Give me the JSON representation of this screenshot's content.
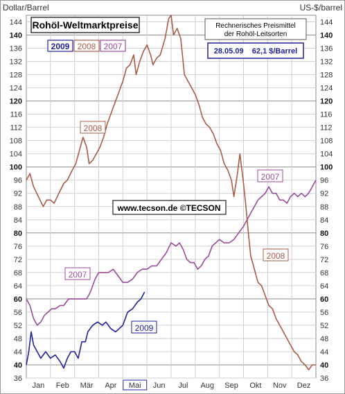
{
  "chart_data": {
    "type": "line",
    "title": "Rohöl-Weltmarktpreise",
    "ylabel_left": "Dollar/Barrel",
    "ylabel_right": "US-$/barrel",
    "ylim": [
      36,
      146
    ],
    "yticks": [
      36,
      40,
      44,
      48,
      52,
      56,
      60,
      64,
      68,
      72,
      76,
      80,
      84,
      88,
      92,
      96,
      100,
      104,
      108,
      112,
      116,
      120,
      124,
      128,
      132,
      136,
      140,
      144
    ],
    "ymajor": [
      40,
      60,
      80,
      100,
      120,
      140
    ],
    "months": [
      "Jan",
      "Feb",
      "Mär",
      "Apr",
      "Mai",
      "Jun",
      "Jul",
      "Aug",
      "Sep",
      "Okt",
      "Nov",
      "Dez"
    ],
    "highlight_month": "Mai",
    "legend": [
      "2009",
      "2008",
      "2007"
    ],
    "note": [
      "Rechnerisches Preismittel",
      "der Rohöl-Leitsorten"
    ],
    "quote": "28.05.09    62,1 $/Barrel",
    "watermark": "www.tecson.de  ©TECSON",
    "x_unit": "month index (1.0 = start of Jan, 13.0 = end of Dec)",
    "series": [
      {
        "name": "2009",
        "color": "#1f1fa0",
        "label_in_plot": "2009",
        "points": [
          [
            1.0,
            40
          ],
          [
            1.1,
            44
          ],
          [
            1.2,
            50
          ],
          [
            1.3,
            46
          ],
          [
            1.45,
            44
          ],
          [
            1.6,
            42
          ],
          [
            1.8,
            44
          ],
          [
            2.0,
            42
          ],
          [
            2.2,
            43
          ],
          [
            2.4,
            41
          ],
          [
            2.55,
            39
          ],
          [
            2.7,
            42
          ],
          [
            2.85,
            44
          ],
          [
            3.0,
            44
          ],
          [
            3.15,
            42
          ],
          [
            3.3,
            47
          ],
          [
            3.45,
            47
          ],
          [
            3.55,
            50
          ],
          [
            3.75,
            52
          ],
          [
            3.95,
            53
          ],
          [
            4.15,
            52
          ],
          [
            4.3,
            53
          ],
          [
            4.5,
            51
          ],
          [
            4.7,
            50
          ],
          [
            4.85,
            51
          ],
          [
            5.0,
            52
          ],
          [
            5.2,
            56
          ],
          [
            5.4,
            57
          ],
          [
            5.6,
            59
          ],
          [
            5.75,
            60
          ],
          [
            5.9,
            62.1
          ]
        ]
      },
      {
        "name": "2008",
        "color": "#a85a46",
        "label_in_plot": "2008",
        "points": [
          [
            1.0,
            96
          ],
          [
            1.15,
            98
          ],
          [
            1.3,
            94
          ],
          [
            1.5,
            91
          ],
          [
            1.7,
            88
          ],
          [
            1.85,
            90
          ],
          [
            2.0,
            90
          ],
          [
            2.15,
            89
          ],
          [
            2.35,
            92
          ],
          [
            2.55,
            95
          ],
          [
            2.7,
            96
          ],
          [
            2.9,
            99
          ],
          [
            3.05,
            101
          ],
          [
            3.2,
            105
          ],
          [
            3.35,
            109
          ],
          [
            3.5,
            106
          ],
          [
            3.6,
            101
          ],
          [
            3.75,
            102
          ],
          [
            3.9,
            104
          ],
          [
            4.05,
            106
          ],
          [
            4.2,
            109
          ],
          [
            4.35,
            113
          ],
          [
            4.5,
            116
          ],
          [
            4.65,
            119
          ],
          [
            4.8,
            122
          ],
          [
            4.9,
            124
          ],
          [
            5.0,
            126
          ],
          [
            5.15,
            130
          ],
          [
            5.3,
            131
          ],
          [
            5.45,
            134
          ],
          [
            5.55,
            128
          ],
          [
            5.7,
            132
          ],
          [
            5.85,
            135
          ],
          [
            6.0,
            137
          ],
          [
            6.15,
            134
          ],
          [
            6.25,
            131
          ],
          [
            6.4,
            133
          ],
          [
            6.55,
            134
          ],
          [
            6.75,
            139
          ],
          [
            6.9,
            145
          ],
          [
            7.0,
            146
          ],
          [
            7.1,
            140
          ],
          [
            7.25,
            142
          ],
          [
            7.4,
            139
          ],
          [
            7.55,
            128
          ],
          [
            7.7,
            126
          ],
          [
            7.85,
            124
          ],
          [
            8.0,
            122
          ],
          [
            8.15,
            119
          ],
          [
            8.3,
            115
          ],
          [
            8.45,
            113
          ],
          [
            8.6,
            112
          ],
          [
            8.75,
            110
          ],
          [
            8.9,
            107
          ],
          [
            9.05,
            105
          ],
          [
            9.2,
            101
          ],
          [
            9.35,
            99
          ],
          [
            9.5,
            96
          ],
          [
            9.6,
            91
          ],
          [
            9.75,
            98
          ],
          [
            9.85,
            104
          ],
          [
            10.0,
            95
          ],
          [
            10.1,
            88
          ],
          [
            10.2,
            80
          ],
          [
            10.3,
            73
          ],
          [
            10.45,
            69
          ],
          [
            10.6,
            65
          ],
          [
            10.75,
            64
          ],
          [
            10.9,
            61
          ],
          [
            11.05,
            58
          ],
          [
            11.2,
            57
          ],
          [
            11.35,
            54
          ],
          [
            11.5,
            52
          ],
          [
            11.65,
            50
          ],
          [
            11.8,
            48
          ],
          [
            11.95,
            46
          ],
          [
            12.1,
            44
          ],
          [
            12.25,
            43
          ],
          [
            12.4,
            41
          ],
          [
            12.55,
            40
          ],
          [
            12.7,
            38.5
          ],
          [
            12.85,
            40
          ],
          [
            13.0,
            40
          ]
        ]
      },
      {
        "name": "2007",
        "color": "#9a4a9a",
        "label_in_plot": "2007",
        "points": [
          [
            1.0,
            60
          ],
          [
            1.15,
            58
          ],
          [
            1.3,
            54
          ],
          [
            1.45,
            52
          ],
          [
            1.6,
            53
          ],
          [
            1.75,
            55
          ],
          [
            1.9,
            56
          ],
          [
            2.05,
            57
          ],
          [
            2.2,
            57
          ],
          [
            2.4,
            58
          ],
          [
            2.55,
            58
          ],
          [
            2.75,
            60
          ],
          [
            2.9,
            60
          ],
          [
            3.1,
            60
          ],
          [
            3.3,
            60
          ],
          [
            3.5,
            60
          ],
          [
            3.65,
            62
          ],
          [
            3.85,
            66
          ],
          [
            4.0,
            68
          ],
          [
            4.2,
            68
          ],
          [
            4.4,
            68
          ],
          [
            4.6,
            69
          ],
          [
            4.8,
            67
          ],
          [
            5.0,
            65
          ],
          [
            5.2,
            65
          ],
          [
            5.4,
            66
          ],
          [
            5.6,
            68
          ],
          [
            5.8,
            69
          ],
          [
            6.0,
            69
          ],
          [
            6.2,
            70
          ],
          [
            6.4,
            70
          ],
          [
            6.6,
            72
          ],
          [
            6.8,
            74
          ],
          [
            7.0,
            77
          ],
          [
            7.2,
            76
          ],
          [
            7.35,
            77
          ],
          [
            7.5,
            75
          ],
          [
            7.65,
            72
          ],
          [
            7.8,
            71
          ],
          [
            7.95,
            71
          ],
          [
            8.1,
            69
          ],
          [
            8.25,
            70
          ],
          [
            8.4,
            72
          ],
          [
            8.55,
            73
          ],
          [
            8.7,
            76
          ],
          [
            8.85,
            77
          ],
          [
            9.0,
            78
          ],
          [
            9.2,
            77
          ],
          [
            9.4,
            77
          ],
          [
            9.6,
            78
          ],
          [
            9.8,
            80
          ],
          [
            10.0,
            82
          ],
          [
            10.15,
            84
          ],
          [
            10.3,
            86
          ],
          [
            10.45,
            88
          ],
          [
            10.6,
            90
          ],
          [
            10.75,
            91
          ],
          [
            10.9,
            92
          ],
          [
            11.05,
            94
          ],
          [
            11.2,
            92
          ],
          [
            11.35,
            92
          ],
          [
            11.5,
            90
          ],
          [
            11.65,
            90
          ],
          [
            11.8,
            89
          ],
          [
            11.95,
            91
          ],
          [
            12.1,
            92
          ],
          [
            12.25,
            91
          ],
          [
            12.4,
            92
          ],
          [
            12.55,
            91
          ],
          [
            12.7,
            92
          ],
          [
            12.85,
            94
          ],
          [
            13.0,
            96
          ]
        ]
      }
    ]
  }
}
